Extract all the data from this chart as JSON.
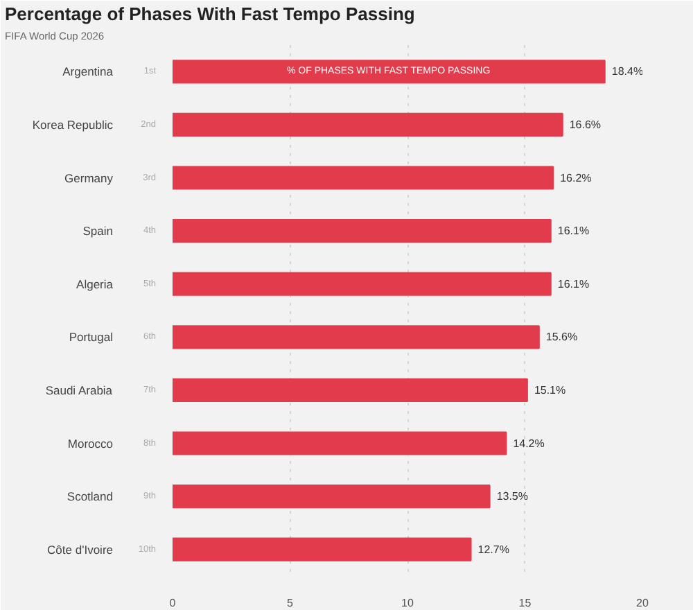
{
  "chart_data": {
    "type": "bar",
    "orientation": "horizontal",
    "title": "Percentage of Phases With Fast Tempo Passing",
    "subtitle": "FIFA World Cup 2026",
    "categories": [
      "Argentina",
      "Korea Republic",
      "Germany",
      "Spain",
      "Algeria",
      "Portugal",
      "Saudi Arabia",
      "Morocco",
      "Scotland",
      "Côte d'Ivoire"
    ],
    "values": [
      18.4,
      16.6,
      16.2,
      16.1,
      16.1,
      15.6,
      15.1,
      14.2,
      13.5,
      12.7
    ],
    "color": "#e23b4b",
    "value_labels": [
      "18.4%",
      "16.6%",
      "16.2%",
      "16.1%",
      "16.1%",
      "15.6%",
      "15.1%",
      "14.2%",
      "13.5%",
      "12.7%"
    ],
    "xlim": [
      0,
      20
    ],
    "xticks": [
      0,
      5,
      10,
      15,
      20
    ],
    "grid": "x",
    "annotations": [
      "% OF PHASES WITH FAST TEMPO PASSING",
      "1st",
      "2nd",
      "3rd",
      "4th",
      "5th",
      "6th",
      "7th",
      "8th",
      "9th",
      "10th"
    ]
  }
}
